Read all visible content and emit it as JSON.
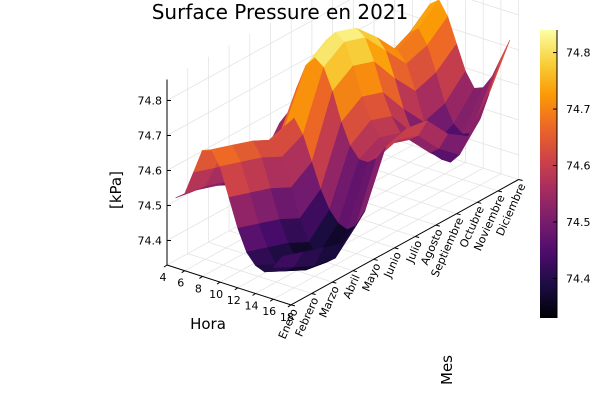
{
  "chart_data": {
    "type": "surface",
    "title": "Surface Pressure en 2021",
    "xlabel": "Hora",
    "ylabel": "Mes",
    "zlabel": "[kPa]",
    "x_ticks": [
      4,
      6,
      8,
      10,
      12,
      14,
      16,
      18
    ],
    "xlim": [
      4,
      18
    ],
    "y_categories": [
      "Enero",
      "Febrero",
      "Marzo",
      "Abril",
      "Mayo",
      "Junio",
      "Julio",
      "Agosto",
      "Septiembre",
      "Octubre",
      "Noviembre",
      "Diciembre"
    ],
    "z_ticks": [
      "74.4",
      "74.5",
      "74.6",
      "74.7",
      "74.8"
    ],
    "zlim": [
      74.33,
      74.86
    ],
    "colorbar_ticks": [
      "74.4",
      "74.5",
      "74.6",
      "74.7",
      "74.8"
    ],
    "colorbar_range": [
      74.33,
      74.84
    ],
    "colormap": [
      "#000004",
      "#1b0c41",
      "#4a0c6b",
      "#781c6d",
      "#a52c60",
      "#cf4446",
      "#ed6925",
      "#fb9b06",
      "#f7d13d",
      "#fcffa4"
    ],
    "hours": [
      5,
      6,
      7,
      8,
      9,
      10,
      11,
      12,
      13,
      14,
      15,
      16,
      17
    ],
    "values": [
      [
        74.53,
        74.55,
        74.62,
        74.69,
        74.7,
        74.66,
        74.58,
        74.5,
        74.44,
        74.41,
        74.4,
        74.42,
        74.46
      ],
      [
        74.52,
        74.54,
        74.6,
        74.66,
        74.68,
        74.64,
        74.56,
        74.48,
        74.42,
        74.38,
        74.37,
        74.39,
        74.44
      ],
      [
        74.5,
        74.52,
        74.58,
        74.64,
        74.66,
        74.62,
        74.54,
        74.46,
        74.4,
        74.36,
        74.34,
        74.36,
        74.42
      ],
      [
        74.47,
        74.49,
        74.55,
        74.61,
        74.63,
        74.59,
        74.51,
        74.43,
        74.37,
        74.34,
        74.33,
        74.35,
        74.4
      ],
      [
        74.49,
        74.51,
        74.57,
        74.63,
        74.66,
        74.62,
        74.55,
        74.48,
        74.43,
        74.4,
        74.39,
        74.41,
        74.46
      ],
      [
        74.58,
        74.62,
        74.7,
        74.77,
        74.8,
        74.78,
        74.72,
        74.64,
        74.58,
        74.55,
        74.55,
        74.57,
        74.61
      ],
      [
        74.62,
        74.66,
        74.74,
        74.81,
        74.84,
        74.82,
        74.76,
        74.68,
        74.62,
        74.58,
        74.57,
        74.59,
        74.63
      ],
      [
        74.6,
        74.64,
        74.72,
        74.79,
        74.82,
        74.8,
        74.74,
        74.66,
        74.6,
        74.56,
        74.55,
        74.57,
        74.62
      ],
      [
        74.56,
        74.59,
        74.66,
        74.73,
        74.76,
        74.73,
        74.66,
        74.58,
        74.52,
        74.49,
        74.48,
        74.5,
        74.55
      ],
      [
        74.52,
        74.55,
        74.61,
        74.67,
        74.69,
        74.66,
        74.59,
        74.51,
        74.45,
        74.42,
        74.42,
        74.45,
        74.51
      ],
      [
        74.55,
        74.58,
        74.64,
        74.7,
        74.72,
        74.68,
        74.61,
        74.53,
        74.48,
        74.46,
        74.47,
        74.52,
        74.6
      ],
      [
        74.6,
        74.63,
        74.69,
        74.75,
        74.77,
        74.73,
        74.66,
        74.59,
        74.55,
        74.56,
        74.6,
        74.66,
        74.72
      ]
    ]
  }
}
